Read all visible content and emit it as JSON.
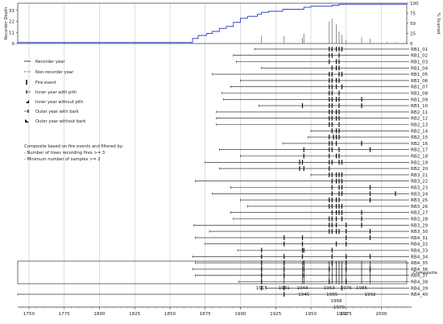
{
  "chart_data": {
    "type": "fire-history",
    "left_axis_label": "Recorder Depth",
    "right_axis_label": "% Scarred",
    "left_ticks": [
      0,
      11,
      22,
      33
    ],
    "right_ticks": [
      0,
      25,
      50,
      75,
      100
    ],
    "x_ticks": [
      1750,
      1775,
      1800,
      1825,
      1850,
      1875,
      1900,
      1925,
      1950,
      1975,
      2000
    ],
    "xlim": [
      1742,
      2018
    ],
    "legend": [
      {
        "symbol": "recorder-line",
        "label": "Recorder year"
      },
      {
        "symbol": "nonrecorder-line",
        "label": "Non-recorder year"
      },
      {
        "symbol": "fire-event",
        "label": "Fire event"
      },
      {
        "symbol": "inner-pith",
        "label": "Inner year with pith"
      },
      {
        "symbol": "inner-no-pith",
        "label": "Inner year without pith"
      },
      {
        "symbol": "outer-bark",
        "label": "Outer year with bark"
      },
      {
        "symbol": "outer-no-bark",
        "label": "Outer year without bark"
      }
    ],
    "composite_note": [
      "Composite based on fire events and filtered by:",
      "- Number of trees recording fires >= 3",
      "- Minimum number of samples >= 2"
    ],
    "composite_label": "Composite",
    "series": [
      {
        "name": "RB1_01",
        "start": 1910,
        "end": 2010,
        "fires": [
          1963,
          1965,
          1968,
          1970,
          1972
        ]
      },
      {
        "name": "RB1_02",
        "start": 1895,
        "end": 2010,
        "fires": [
          1963,
          1965,
          1970
        ]
      },
      {
        "name": "RB1_03",
        "start": 1897,
        "end": 2010,
        "fires": [
          1963,
          1968,
          1970
        ]
      },
      {
        "name": "RB1_04",
        "start": 1915,
        "end": 2010,
        "fires": [
          1965,
          1968,
          1970
        ]
      },
      {
        "name": "RB1_05",
        "start": 1880,
        "end": 2010,
        "fires": [
          1963,
          1965,
          1970,
          1972
        ]
      },
      {
        "name": "RB1_06",
        "start": 1900,
        "end": 2010,
        "fires": [
          1963,
          1965,
          1968,
          1970
        ]
      },
      {
        "name": "RB1_07",
        "start": 1893,
        "end": 2010,
        "fires": [
          1963,
          1965,
          1968,
          1972
        ]
      },
      {
        "name": "RB1_08",
        "start": 1887,
        "end": 2010,
        "fires": [
          1963,
          1965,
          1970
        ]
      },
      {
        "name": "RB1_09",
        "start": 1888,
        "end": 2010,
        "fires": [
          1963,
          1965,
          1968,
          1970,
          1986
        ]
      },
      {
        "name": "RB1_10",
        "start": 1913,
        "end": 2010,
        "fires": [
          1944,
          1963,
          1965,
          1970,
          1986
        ]
      },
      {
        "name": "RB2_11",
        "start": 1883,
        "end": 2010,
        "fires": [
          1963,
          1965,
          1968,
          1970
        ]
      },
      {
        "name": "RB2_12",
        "start": 1883,
        "end": 2010,
        "fires": [
          1963,
          1965,
          1968,
          1970
        ]
      },
      {
        "name": "RB2_13",
        "start": 1883,
        "end": 2010,
        "fires": [
          1963,
          1965,
          1970
        ]
      },
      {
        "name": "RB2_14",
        "start": 1950,
        "end": 2010,
        "fires": [
          1965,
          1968,
          1970
        ]
      },
      {
        "name": "RB2_15",
        "start": 1948,
        "end": 2010,
        "fires": [
          1963,
          1966,
          1968,
          1970
        ]
      },
      {
        "name": "RB2_16",
        "start": 1930,
        "end": 2010,
        "fires": [
          1963,
          1965,
          1968,
          1986
        ]
      },
      {
        "name": "RB2_17",
        "start": 1885,
        "end": 2010,
        "fires": [
          1945,
          1963,
          1965,
          1970,
          1992
        ]
      },
      {
        "name": "RB2_18",
        "start": 1900,
        "end": 2010,
        "fires": [
          1945,
          1963,
          1968,
          1970
        ]
      },
      {
        "name": "RB2_19",
        "start": 1875,
        "end": 2010,
        "fires": [
          1942,
          1944,
          1963,
          1965,
          1970,
          1972
        ]
      },
      {
        "name": "RB2_20",
        "start": 1885,
        "end": 2010,
        "fires": [
          1942,
          1945,
          1963
        ]
      },
      {
        "name": "RB3_21",
        "start": 1950,
        "end": 2010,
        "fires": [
          1963,
          1965,
          1968,
          1970,
          1972
        ]
      },
      {
        "name": "RB3_22",
        "start": 1868,
        "end": 2010,
        "fires": [
          1965,
          1968,
          1970,
          1972
        ]
      },
      {
        "name": "RB3_23",
        "start": 1893,
        "end": 2010,
        "fires": [
          1965,
          1970,
          1972,
          1992
        ]
      },
      {
        "name": "RB3_24",
        "start": 1880,
        "end": 2015,
        "fires": [
          1965,
          1970,
          1972,
          1992,
          2010
        ]
      },
      {
        "name": "RB3_25",
        "start": 1900,
        "end": 2010,
        "fires": [
          1963,
          1965,
          1968,
          1970,
          1992
        ]
      },
      {
        "name": "RB3_26",
        "start": 1905,
        "end": 2010,
        "fires": [
          1963,
          1965,
          1968,
          1970,
          1972
        ]
      },
      {
        "name": "RB3_27",
        "start": 1893,
        "end": 2010,
        "fires": [
          1965,
          1968,
          1970,
          1972,
          1986
        ]
      },
      {
        "name": "RB3_28",
        "start": 1895,
        "end": 2010,
        "fires": [
          1963,
          1965,
          1968,
          1972,
          1986
        ]
      },
      {
        "name": "RB3_29",
        "start": 1867,
        "end": 2010,
        "fires": [
          1963,
          1965,
          1968,
          1975,
          1986
        ]
      },
      {
        "name": "RB3_30",
        "start": 1878,
        "end": 2010,
        "fires": [
          1963,
          1965,
          1968,
          1970,
          1975,
          1992
        ]
      },
      {
        "name": "RB4_31",
        "start": 1868,
        "end": 2010,
        "fires": [
          1931,
          1944,
          1975,
          1992
        ]
      },
      {
        "name": "RB4_32",
        "start": 1875,
        "end": 2010,
        "fires": [
          1931,
          1944,
          1968,
          1975
        ]
      },
      {
        "name": "RB4_33",
        "start": 1898,
        "end": 2010,
        "fires": [
          1915,
          1944,
          1945,
          1965
        ]
      },
      {
        "name": "RB4_34",
        "start": 1866,
        "end": 2010,
        "fires": [
          1915,
          1931,
          1944,
          1965,
          1975,
          1992
        ]
      },
      {
        "name": "RB4_35",
        "start": 1868,
        "end": 2010,
        "fires": [
          1915,
          1931,
          1945,
          1965,
          1975
        ]
      },
      {
        "name": "RB4_36",
        "start": 1866,
        "end": 2010,
        "fires": [
          1915,
          1931,
          1945,
          1963,
          1975,
          1992
        ]
      },
      {
        "name": "RB4_37",
        "start": 1868,
        "end": 2010,
        "fires": [
          1915,
          1931,
          1945
        ]
      },
      {
        "name": "RB4_38",
        "start": 1899,
        "end": 2010,
        "fires": [
          1915,
          1963,
          1975
        ]
      },
      {
        "name": "RB4_39",
        "start": 1918,
        "end": 2010,
        "fires": [
          1915,
          1931,
          1972
        ]
      },
      {
        "name": "RB4_40",
        "start": 1742,
        "end": 2010,
        "fires": [
          1931
        ]
      }
    ],
    "composite_years": [
      1915,
      1931,
      1944,
      1945,
      1963,
      1965,
      1968,
      1970,
      1972,
      1975,
      1986,
      1992
    ],
    "percent_scarred": [
      {
        "year": 1915,
        "value": 20
      },
      {
        "year": 1931,
        "value": 18
      },
      {
        "year": 1944,
        "value": 15
      },
      {
        "year": 1945,
        "value": 25
      },
      {
        "year": 1963,
        "value": 55
      },
      {
        "year": 1965,
        "value": 62
      },
      {
        "year": 1968,
        "value": 48
      },
      {
        "year": 1970,
        "value": 30
      },
      {
        "year": 1972,
        "value": 22
      },
      {
        "year": 1975,
        "value": 10
      },
      {
        "year": 1986,
        "value": 15
      },
      {
        "year": 1992,
        "value": 12
      },
      {
        "year": 2004,
        "value": 4
      },
      {
        "year": 2010,
        "value": 3
      }
    ],
    "recorder_depth": [
      {
        "year": 1742,
        "value": 1
      },
      {
        "year": 1864,
        "value": 1
      },
      {
        "year": 1866,
        "value": 5
      },
      {
        "year": 1870,
        "value": 8
      },
      {
        "year": 1876,
        "value": 10
      },
      {
        "year": 1880,
        "value": 12
      },
      {
        "year": 1885,
        "value": 15
      },
      {
        "year": 1890,
        "value": 17
      },
      {
        "year": 1895,
        "value": 21
      },
      {
        "year": 1900,
        "value": 25
      },
      {
        "year": 1905,
        "value": 27
      },
      {
        "year": 1912,
        "value": 29
      },
      {
        "year": 1915,
        "value": 31
      },
      {
        "year": 1920,
        "value": 32
      },
      {
        "year": 1930,
        "value": 34
      },
      {
        "year": 1945,
        "value": 36
      },
      {
        "year": 1950,
        "value": 37
      },
      {
        "year": 1965,
        "value": 38
      },
      {
        "year": 1970,
        "value": 39
      },
      {
        "year": 2018,
        "value": 39
      }
    ]
  }
}
